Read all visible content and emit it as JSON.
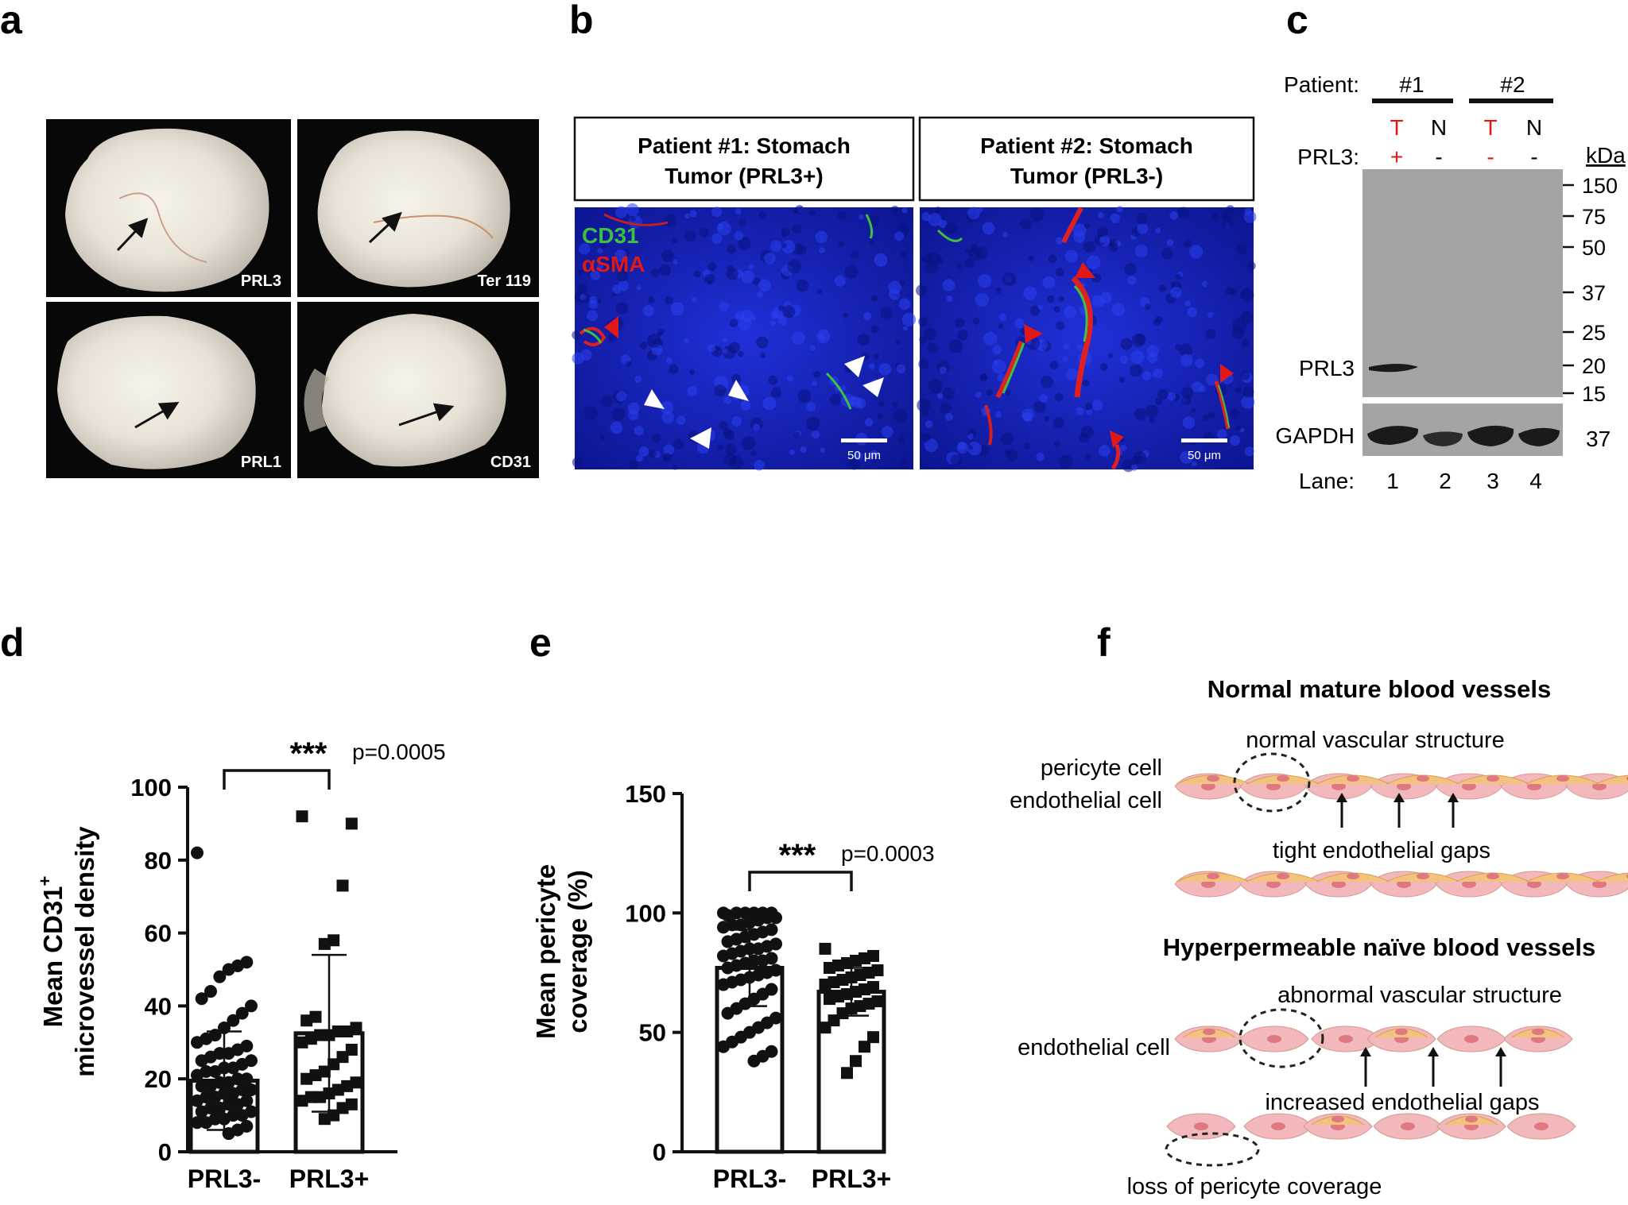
{
  "panels": {
    "a": "a",
    "b": "b",
    "c": "c",
    "d": "d",
    "e": "e",
    "f": "f"
  },
  "panel_a": {
    "labels": [
      "PRL3",
      "Ter 119",
      "PRL1",
      "CD31"
    ]
  },
  "panel_b": {
    "header_1_line1": "Patient #1: Stomach",
    "header_1_line2": "Tumor (PRL3+)",
    "header_2_line1": "Patient #2: Stomach",
    "header_2_line2": "Tumor (PRL3-)",
    "legend_cd31": "CD31",
    "legend_asma": "αSMA",
    "scale_bar": "50 μm",
    "colors": {
      "nuclei": "#1a24c8",
      "cd31": "#3fbf3f",
      "asma": "#e01818"
    }
  },
  "panel_c": {
    "patient_label": "Patient:",
    "patient_1": "#1",
    "patient_2": "#2",
    "lane_T": "T",
    "lane_N": "N",
    "prl3_label": "PRL3:",
    "prl3_status": [
      "+",
      "-",
      "-",
      "-"
    ],
    "kda_label": "kDa",
    "kda_markers": [
      "150",
      "75",
      "50",
      "37",
      "25",
      "20",
      "15"
    ],
    "band_prl3": "PRL3",
    "band_gapdh": "GAPDH",
    "gapdh_kda": "37",
    "lane_label": "Lane:",
    "lanes": [
      "1",
      "2",
      "3",
      "4"
    ],
    "colors": {
      "tumor": "#e01818"
    }
  },
  "panel_f": {
    "title_normal": "Normal mature blood vessels",
    "label_normal_structure": "normal vascular structure",
    "label_pericyte": "pericyte cell",
    "label_endothelial": "endothelial cell",
    "label_tight_gaps": "tight endothelial gaps",
    "title_hyper": "Hyperpermeable naïve blood vessels",
    "label_abnormal_structure": "abnormal vascular structure",
    "label_endothelial_2": "endothelial cell",
    "label_increased_gaps": "increased endothelial gaps",
    "label_loss": "loss of pericyte coverage",
    "colors": {
      "endothelial": "#f2b8bc",
      "pericyte": "#f3c27e",
      "nucleus": "#e07882"
    }
  },
  "chart_data": [
    {
      "type": "bar",
      "panel": "d",
      "categories": [
        "PRL3-",
        "PRL3+"
      ],
      "values": [
        19.5,
        32.5
      ],
      "sd_upper": [
        33,
        54
      ],
      "sd_lower": [
        6,
        11
      ],
      "points": {
        "PRL3-": [
          82,
          52,
          51,
          50,
          48,
          44,
          42,
          40,
          38,
          36,
          34,
          32,
          31,
          30,
          29,
          28,
          27,
          27,
          26,
          25,
          25,
          24,
          23,
          23,
          22,
          22,
          21,
          20,
          20,
          19,
          19,
          18,
          18,
          17,
          17,
          16,
          16,
          15,
          15,
          14,
          14,
          13,
          13,
          12,
          12,
          11,
          11,
          10,
          10,
          9,
          9,
          8,
          8,
          7,
          6,
          5
        ],
        "PRL3+": [
          92,
          90,
          73,
          58,
          57,
          37,
          36,
          34,
          33,
          33,
          32,
          32,
          31,
          30,
          28,
          26,
          24,
          22,
          21,
          20,
          19,
          18,
          17,
          16,
          15,
          15,
          14,
          13,
          12,
          10,
          9
        ]
      },
      "ylabel_line1": "Mean CD31",
      "ylabel_sup": "+",
      "ylabel_line2": "microvessel density",
      "ylim": [
        0,
        100
      ],
      "yticks": [
        "0",
        "20",
        "40",
        "60",
        "80",
        "100"
      ],
      "significance": "***",
      "p_value": "p=0.0005"
    },
    {
      "type": "bar",
      "panel": "e",
      "categories": [
        "PRL3-",
        "PRL3+"
      ],
      "values": [
        77,
        67
      ],
      "sd_upper": [
        93,
        77
      ],
      "sd_lower": [
        61,
        57
      ],
      "points": {
        "PRL3-": [
          100,
          100,
          100,
          100,
          100,
          100,
          99,
          98,
          98,
          97,
          96,
          95,
          95,
          94,
          93,
          92,
          91,
          90,
          89,
          88,
          87,
          86,
          85,
          85,
          84,
          83,
          82,
          81,
          80,
          80,
          79,
          78,
          77,
          76,
          75,
          74,
          73,
          72,
          71,
          70,
          68,
          66,
          64,
          62,
          60,
          58,
          56,
          54,
          52,
          50,
          48,
          46,
          44,
          42,
          40,
          38
        ],
        "PRL3+": [
          85,
          82,
          81,
          80,
          79,
          78,
          77,
          76,
          75,
          74,
          73,
          72,
          71,
          70,
          69,
          68,
          67,
          66,
          65,
          64,
          63,
          62,
          61,
          60,
          58,
          55,
          52,
          48,
          44,
          38,
          33
        ]
      },
      "ylabel_line1": "Mean pericyte",
      "ylabel_line2": "coverage (%)",
      "ylim": [
        0,
        150
      ],
      "yticks": [
        "0",
        "50",
        "100",
        "150"
      ],
      "significance": "***",
      "p_value": "p=0.0003"
    }
  ]
}
